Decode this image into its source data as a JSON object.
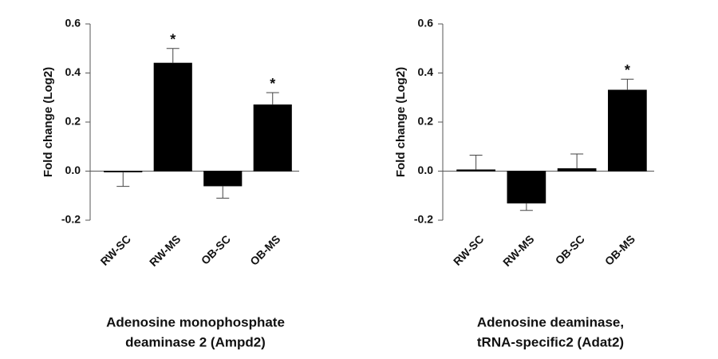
{
  "chart_data": [
    {
      "type": "bar",
      "title": [
        "Adenosine monophosphate",
        "deaminase 2 (Ampd2)"
      ],
      "ylabel": "Fold change (Log2)",
      "categories": [
        "RW-SC",
        "RW-MS",
        "OB-SC",
        "OB-MS"
      ],
      "values": [
        -0.002,
        0.44,
        -0.06,
        0.27
      ],
      "errors": [
        0.06,
        0.06,
        0.05,
        0.05
      ],
      "annotations": [
        null,
        "*",
        null,
        "*"
      ],
      "color": "#000000",
      "ylim": [
        -0.2,
        0.6
      ],
      "yticks": [
        -0.2,
        {
          "value": 0,
          "label": "0.0"
        },
        0.2,
        0.4,
        0.6
      ]
    },
    {
      "type": "bar",
      "title": [
        "Adenosine deaminase,",
        "tRNA-specific2 (Adat2)"
      ],
      "ylabel": "Fold change (Log2)",
      "categories": [
        "RW-SC",
        "RW-MS",
        "OB-SC",
        "OB-MS"
      ],
      "values": [
        0.005,
        -0.13,
        0.01,
        0.33
      ],
      "errors": [
        0.06,
        0.03,
        0.06,
        0.045
      ],
      "annotations": [
        null,
        null,
        null,
        "*"
      ],
      "color": "#000000",
      "ylim": [
        -0.2,
        0.6
      ],
      "yticks": [
        -0.2,
        {
          "value": 0,
          "label": "0.0"
        },
        0.2,
        0.4,
        0.6
      ]
    }
  ]
}
